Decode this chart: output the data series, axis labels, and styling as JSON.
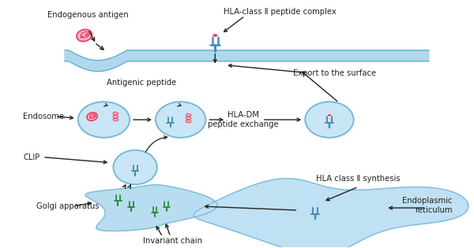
{
  "bg_color": "#ffffff",
  "cell_membrane_color": "#b0d8ec",
  "endosome_color": "#c8e6f5",
  "endosome_border": "#7ab8d8",
  "golgi_color": "#b8ddf0",
  "er_color": "#c0e0f4",
  "antigen_color": "#e8456a",
  "hla_body_color": "#4a8ab5",
  "hla_peptide_color": "#e8456a",
  "arrow_color": "#222222",
  "text_color": "#222222",
  "green_color": "#2a8a3a",
  "labels": {
    "endogenous_antigen": "Endogenous antigen",
    "hla_complex": "HLA-class Ⅱ peptide complex",
    "antigenic_peptide": "Antigenic peptide",
    "export": "Export to the surface",
    "endosome": "Endosome",
    "clip": "CLIP",
    "hladm": "HLA-DM\npeptide exchange",
    "golgi": "Golgi apparatus",
    "invariant_chain": "Invariant chain",
    "hla_synthesis": "HLA class Ⅱ synthesis",
    "er": "Endoplasmic\nreticulum"
  }
}
